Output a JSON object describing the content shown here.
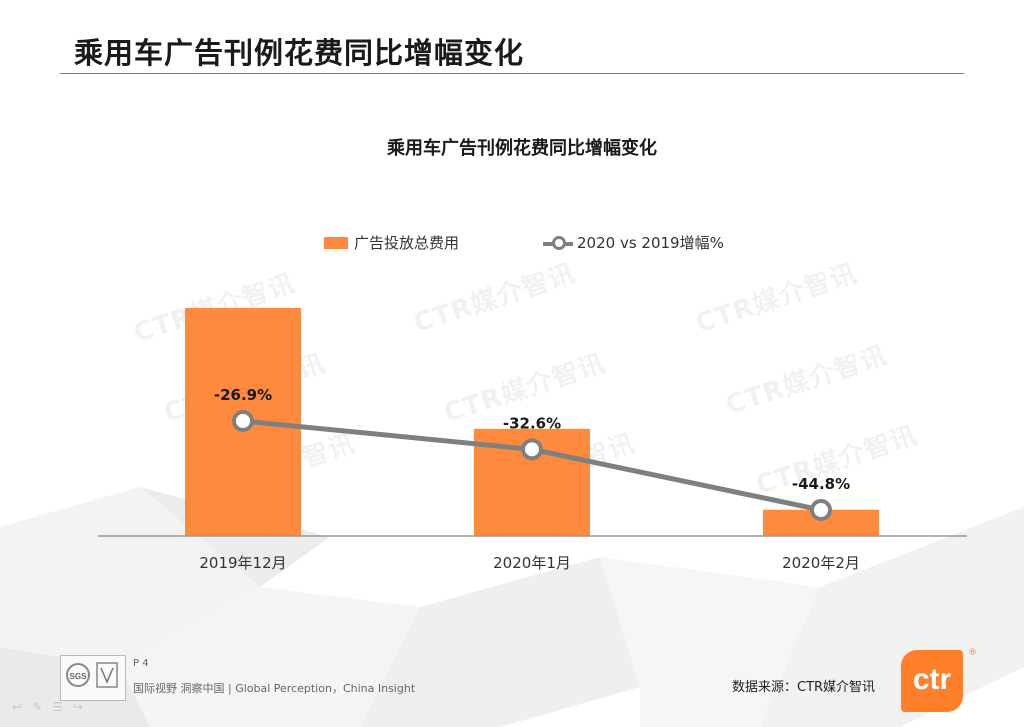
{
  "slide": {
    "title": "乘用车广告刊例花费同比增幅变化",
    "page_label": "P 4",
    "slogan": "国际视野  洞察中国 |  Global Perception，China Insight",
    "source": "数据来源：CTR媒介智讯",
    "watermark": "CTR媒介智讯",
    "brand_logo_text": "ctr",
    "brand_reg": "®"
  },
  "colors": {
    "bar": "#FF8A3D",
    "line": "#7f7f7f",
    "axis": "#999999"
  },
  "chart_data": {
    "type": "bar",
    "title": "乘用车广告刊例花费同比增幅变化",
    "categories": [
      "2019年12月",
      "2020年1月",
      "2020年2月"
    ],
    "series": [
      {
        "name": "广告投放总费用",
        "type": "bar",
        "values": [
          100,
          47,
          11.5
        ]
      },
      {
        "name": "2020 vs 2019增幅%",
        "type": "line",
        "values": [
          -26.9,
          -32.6,
          -44.8
        ],
        "labels": [
          "-26.9%",
          "-32.6%",
          "-44.8%"
        ]
      }
    ],
    "legend": "top-center",
    "grid": false
  }
}
